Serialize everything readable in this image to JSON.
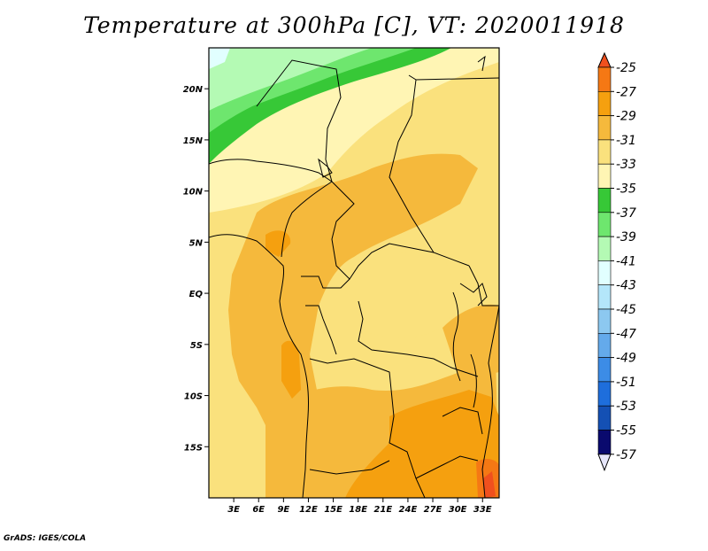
{
  "title": "Temperature at 300hPa [C], VT: 2020011918",
  "footer": "GrADS: IGES/COLA",
  "map": {
    "variable": "Temperature",
    "level_hPa": 300,
    "units": "C",
    "valid_time": "2020011918",
    "lat_range": [
      -20,
      24
    ],
    "lon_range": [
      0,
      35
    ],
    "lat_labels": [
      "20N",
      "15N",
      "10N",
      "5N",
      "EQ",
      "5S",
      "10S",
      "15S"
    ],
    "lat_values": [
      20,
      15,
      10,
      5,
      0,
      -5,
      -10,
      -15
    ],
    "lon_labels": [
      "3E",
      "6E",
      "9E",
      "12E",
      "15E",
      "18E",
      "21E",
      "24E",
      "27E",
      "30E",
      "33E"
    ],
    "lon_values": [
      3,
      6,
      9,
      12,
      15,
      18,
      21,
      24,
      27,
      30,
      33
    ]
  },
  "colorbar": {
    "levels": [
      "-25",
      "-27",
      "-29",
      "-31",
      "-33",
      "-35",
      "-37",
      "-39",
      "-41",
      "-43",
      "-45",
      "-47",
      "-49",
      "-51",
      "-53",
      "-55",
      "-57"
    ],
    "colors": [
      "#f0501e",
      "#f57814",
      "#f5a00f",
      "#f5b93c",
      "#fae17d",
      "#fff5b4",
      "#37c837",
      "#6ee66e",
      "#b4fab4",
      "#e1ffff",
      "#b4e6fa",
      "#8cc8f0",
      "#64aaeb",
      "#3c8ce6",
      "#1e6edc",
      "#1450b4",
      "#0a0a6e",
      "#e6e6fa"
    ]
  }
}
